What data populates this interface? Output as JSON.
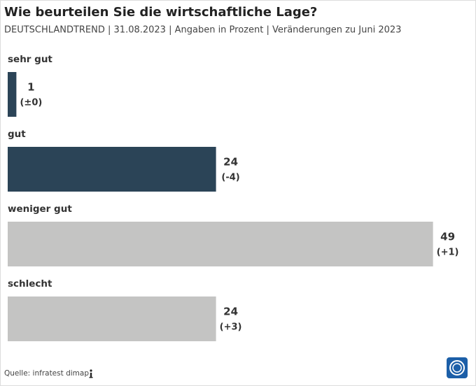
{
  "chart_data": {
    "type": "bar",
    "orientation": "horizontal",
    "title": "Wie beurteilen Sie die wirtschaftliche Lage?",
    "subtitle": "DEUTSCHLANDTREND | 31.08.2023 | Angaben in Prozent | Veränderungen zu Juni 2023",
    "categories": [
      "sehr gut",
      "gut",
      "weniger gut",
      "schlecht"
    ],
    "values": [
      1,
      24,
      49,
      24
    ],
    "changes": [
      "(±0)",
      "(-4)",
      "(+1)",
      "(+3)"
    ],
    "colors": [
      "#2b4457",
      "#2b4457",
      "#c4c4c3",
      "#c4c4c3"
    ],
    "source": "Quelle: infratest dimap"
  }
}
